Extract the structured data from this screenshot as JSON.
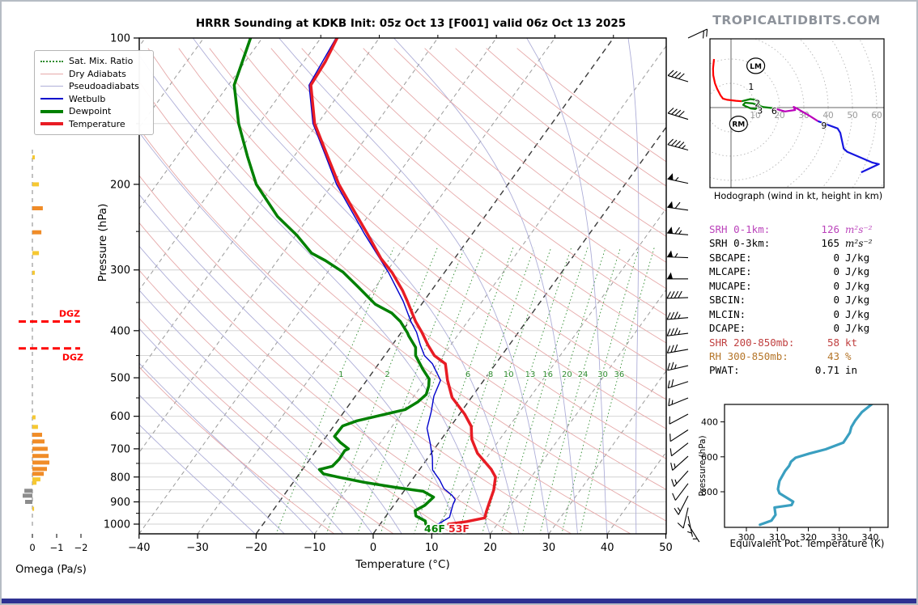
{
  "title": "HRRR Sounding at KDKB Init: 05z Oct 13 [F001] valid 06z Oct 13 2025",
  "brand": "TROPICALTIDBITS.COM",
  "legend": {
    "items": [
      {
        "key": "satmix",
        "label": "Sat. Mix. Ratio"
      },
      {
        "key": "dryadiabat",
        "label": "Dry Adiabats"
      },
      {
        "key": "pseudoadiabat",
        "label": "Pseudoadiabats"
      },
      {
        "key": "wetbulb",
        "label": "Wetbulb"
      },
      {
        "key": "dewpoint",
        "label": "Dewpoint"
      },
      {
        "key": "temperature",
        "label": "Temperature"
      }
    ]
  },
  "axes": {
    "pressure_label": "Pressure (hPa)",
    "temperature_label": "Temperature (°C)",
    "omega_label": "Omega (Pa/s)",
    "pressure_ticks": [
      100,
      200,
      300,
      400,
      500,
      600,
      700,
      800,
      900,
      1000
    ],
    "temperature_ticks": [
      -40,
      -30,
      -20,
      -10,
      0,
      10,
      20,
      30,
      40,
      50
    ],
    "omega_ticks": [
      0,
      -1,
      -2
    ]
  },
  "surface_labels": {
    "dewpoint_f": "46F",
    "temperature_f": "53F"
  },
  "dgz": {
    "label": "DGZ",
    "pressures": [
      383,
      435
    ]
  },
  "hodograph": {
    "caption": "Hodograph (wind in kt, height in km)",
    "ring_interval_kt": 10,
    "ring_labels": [
      10,
      20,
      30,
      40,
      50,
      60
    ],
    "height_labels": [
      {
        "t": "1",
        "u": 8.3,
        "v": 8.7
      },
      {
        "t": "2",
        "u": 10.9,
        "v": 1.8
      },
      {
        "t": "3",
        "u": 11.9,
        "v": -1.2
      },
      {
        "t": "6",
        "u": 17.8,
        "v": -1.3
      },
      {
        "t": "9",
        "u": 38.3,
        "v": -7.3
      }
    ],
    "markers": [
      {
        "t": "LM",
        "u": 10.2,
        "v": 17.2
      },
      {
        "t": "RM",
        "u": 3.1,
        "v": -6.7
      }
    ]
  },
  "indices_rows": [
    {
      "label": "SRH 0-1km:",
      "value": "126",
      "unit": "m²s⁻²",
      "color": "#bb44bb",
      "unit_italic": true
    },
    {
      "label": "SRH 0-3km:",
      "value": "165",
      "unit": "m²s⁻²",
      "color": "#000000",
      "unit_italic": true
    },
    {
      "label": "SBCAPE:",
      "value": "0",
      "unit": "J/kg",
      "color": "#000000"
    },
    {
      "label": "MLCAPE:",
      "value": "0",
      "unit": "J/kg",
      "color": "#000000"
    },
    {
      "label": "MUCAPE:",
      "value": "0",
      "unit": "J/kg",
      "color": "#000000"
    },
    {
      "label": "SBCIN:",
      "value": "0",
      "unit": "J/kg",
      "color": "#000000"
    },
    {
      "label": "MLCIN:",
      "value": "0",
      "unit": "J/kg",
      "color": "#000000"
    },
    {
      "label": "DCAPE:",
      "value": "0",
      "unit": "J/kg",
      "color": "#000000"
    },
    {
      "label": "SHR 200-850mb:",
      "value": "58",
      "unit": "kt",
      "color": "#c04040"
    },
    {
      "label": "RH 300-850mb:",
      "value": "43",
      "unit": "%",
      "color": "#b5762a"
    },
    {
      "label": "PWAT:",
      "value": "0.71",
      "unit": "in",
      "color": "#000000"
    }
  ],
  "thetae": {
    "xlabel": "Equivalent Pot. Temperature (K)",
    "ylabel": "Pressure (hPa)",
    "x_ticks": [
      300,
      310,
      320,
      330,
      340
    ],
    "y_ticks": [
      400,
      600,
      800
    ]
  },
  "mixing_ratio_values": [
    1,
    2,
    3,
    4,
    6,
    8,
    10,
    13,
    16,
    20,
    24,
    30,
    36
  ],
  "mixing_ratio_label_values": [
    1,
    2,
    6,
    8,
    10,
    13,
    16,
    20,
    24,
    30,
    36
  ],
  "chart_data": [
    {
      "type": "line",
      "name": "skewt_sounding",
      "xlabel": "Temperature (°C)",
      "ylabel": "Pressure (hPa)",
      "xlim": [
        -40,
        50
      ],
      "pressure_range": [
        100,
        1050
      ],
      "series": [
        {
          "name": "Temperature",
          "color": "#e81c24",
          "points_p_T": [
            [
              100,
              -67.2
            ],
            [
              112,
              -66.3
            ],
            [
              125,
              -65.9
            ],
            [
              150,
              -60.5
            ],
            [
              175,
              -54.3
            ],
            [
              200,
              -48.9
            ],
            [
              226,
              -43.2
            ],
            [
              253,
              -37.9
            ],
            [
              284,
              -32.6
            ],
            [
              304,
              -28.9
            ],
            [
              331,
              -24.9
            ],
            [
              348,
              -22.8
            ],
            [
              383,
              -18.9
            ],
            [
              403,
              -16.5
            ],
            [
              428,
              -13.9
            ],
            [
              450,
              -11.5
            ],
            [
              468,
              -8.6
            ],
            [
              506,
              -6.2
            ],
            [
              549,
              -3.3
            ],
            [
              594,
              0.9
            ],
            [
              629,
              3.5
            ],
            [
              669,
              5.2
            ],
            [
              715,
              7.9
            ],
            [
              771,
              12.2
            ],
            [
              800,
              13.9
            ],
            [
              851,
              15.2
            ],
            [
              903,
              16.0
            ],
            [
              943,
              16.6
            ],
            [
              971,
              17.1
            ],
            [
              988,
              14.5
            ],
            [
              1000,
              11.7
            ]
          ]
        },
        {
          "name": "Dewpoint",
          "color": "#008000",
          "points_p_T": [
            [
              100,
              -82
            ],
            [
              125,
              -79
            ],
            [
              150,
              -73.5
            ],
            [
              175,
              -68
            ],
            [
              200,
              -63
            ],
            [
              233,
              -55.4
            ],
            [
              255,
              -49.7
            ],
            [
              277,
              -45.1
            ],
            [
              287,
              -41.8
            ],
            [
              303,
              -37.4
            ],
            [
              325,
              -33
            ],
            [
              353,
              -27.9
            ],
            [
              368,
              -24
            ],
            [
              383,
              -21.5
            ],
            [
              404,
              -18.9
            ],
            [
              410,
              -18.3
            ],
            [
              433,
              -15.7
            ],
            [
              450,
              -14.7
            ],
            [
              480,
              -11.8
            ],
            [
              503,
              -9.5
            ],
            [
              520,
              -8.7
            ],
            [
              541,
              -8.1
            ],
            [
              560,
              -8.6
            ],
            [
              581,
              -9.8
            ],
            [
              613,
              -16.7
            ],
            [
              628,
              -18.5
            ],
            [
              660,
              -18.6
            ],
            [
              680,
              -16.8
            ],
            [
              700,
              -14.7
            ],
            [
              706,
              -15.1
            ],
            [
              735,
              -15.0
            ],
            [
              760,
              -15.3
            ],
            [
              772,
              -17.1
            ],
            [
              788,
              -15.9
            ],
            [
              800,
              -13
            ],
            [
              820,
              -8
            ],
            [
              840,
              -2
            ],
            [
              856,
              3.3
            ],
            [
              880,
              5.8
            ],
            [
              915,
              5.3
            ],
            [
              938,
              4.3
            ],
            [
              962,
              5.1
            ],
            [
              985,
              7.3
            ],
            [
              1000,
              7.8
            ]
          ]
        },
        {
          "name": "Wetbulb",
          "color": "#0000cc",
          "points_p_T": [
            [
              100,
              -67.4
            ],
            [
              125,
              -66.2
            ],
            [
              150,
              -60.8
            ],
            [
              175,
              -54.6
            ],
            [
              200,
              -49.3
            ],
            [
              253,
              -38.4
            ],
            [
              304,
              -29.5
            ],
            [
              348,
              -23.5
            ],
            [
              383,
              -19.7
            ],
            [
              403,
              -17.4
            ],
            [
              428,
              -15.2
            ],
            [
              450,
              -13.2
            ],
            [
              468,
              -10.8
            ],
            [
              506,
              -7.4
            ],
            [
              545,
              -6.6
            ],
            [
              588,
              -5.1
            ],
            [
              635,
              -3.8
            ],
            [
              684,
              -1.3
            ],
            [
              729,
              0.7
            ],
            [
              774,
              2.3
            ],
            [
              811,
              4.7
            ],
            [
              845,
              6.5
            ],
            [
              872,
              8.7
            ],
            [
              890,
              9.8
            ],
            [
              910,
              10.0
            ],
            [
              933,
              10.4
            ],
            [
              950,
              10.7
            ],
            [
              968,
              11.0
            ],
            [
              985,
              10.4
            ],
            [
              1000,
              9.9
            ]
          ]
        }
      ],
      "wind_barbs_p_kt_dir": [
        [
          100,
          20,
          65
        ],
        [
          123,
          40,
          287
        ],
        [
          147,
          40,
          287
        ],
        [
          170,
          45,
          285
        ],
        [
          199,
          55,
          282
        ],
        [
          226,
          60,
          278
        ],
        [
          254,
          65,
          275
        ],
        [
          283,
          55,
          272
        ],
        [
          313,
          50,
          270
        ],
        [
          342,
          40,
          268
        ],
        [
          376,
          35,
          265
        ],
        [
          405,
          35,
          263
        ],
        [
          437,
          30,
          260
        ],
        [
          472,
          25,
          257
        ],
        [
          509,
          20,
          252
        ],
        [
          550,
          15,
          248
        ],
        [
          594,
          10,
          242
        ],
        [
          640,
          10,
          237
        ],
        [
          681,
          10,
          232
        ],
        [
          725,
          15,
          228
        ],
        [
          777,
          15,
          222
        ],
        [
          825,
          10,
          217
        ],
        [
          875,
          15,
          207
        ],
        [
          925,
          10,
          193
        ],
        [
          963,
          5,
          168
        ],
        [
          1000,
          5,
          148
        ]
      ]
    },
    {
      "type": "line",
      "name": "hodograph",
      "units": "kt",
      "series": [
        {
          "name": "0-1km",
          "color": "#ff0000",
          "points_uv": [
            [
              -7,
              20
            ],
            [
              -7.4,
              16
            ],
            [
              -7.3,
              13.3
            ],
            [
              -6.6,
              10
            ],
            [
              -5.7,
              7.7
            ],
            [
              -4.3,
              5
            ],
            [
              -3.3,
              3.7
            ],
            [
              -1.5,
              3.2
            ],
            [
              2,
              2.8
            ],
            [
              4.4,
              2.6
            ]
          ]
        },
        {
          "name": "1-3km",
          "color": "#008000",
          "points_uv": [
            [
              4.4,
              2.6
            ],
            [
              8,
              3.5
            ],
            [
              10.6,
              3.1
            ],
            [
              11.9,
              0.7
            ],
            [
              10,
              -0.6
            ],
            [
              8.3,
              -0.4
            ],
            [
              5.9,
              0.6
            ],
            [
              5,
              1.1
            ],
            [
              5.8,
              2
            ],
            [
              9,
              1.7
            ],
            [
              13.3,
              0.2
            ],
            [
              17.2,
              -0.2
            ]
          ]
        },
        {
          "name": "3-6km",
          "color": "#bb00bb",
          "points_uv": [
            [
              17.2,
              -0.2
            ],
            [
              22.2,
              -1.6
            ],
            [
              26.4,
              -1
            ],
            [
              25.8,
              0.3
            ],
            [
              27.2,
              -0.4
            ],
            [
              32.2,
              -3.3
            ],
            [
              35.8,
              -5.6
            ]
          ]
        },
        {
          "name": "6-12km",
          "color": "#1515e0",
          "points_uv": [
            [
              35.8,
              -5.6
            ],
            [
              43.9,
              -8.6
            ],
            [
              45,
              -10.4
            ],
            [
              46.4,
              -16.9
            ],
            [
              47.8,
              -18.2
            ],
            [
              58.3,
              -22.7
            ],
            [
              60.9,
              -23.3
            ],
            [
              53.6,
              -26.7
            ]
          ]
        }
      ]
    },
    {
      "type": "line",
      "name": "theta_e_profile",
      "xlabel": "Equivalent Pot. Temperature (K)",
      "ylabel": "Pressure (hPa)",
      "color": "#3a9fc0",
      "points_K_p": [
        [
          304.4,
          989
        ],
        [
          308.1,
          965
        ],
        [
          309.4,
          932
        ],
        [
          309.1,
          890
        ],
        [
          314.6,
          876
        ],
        [
          315.1,
          857
        ],
        [
          310.7,
          809
        ],
        [
          310.2,
          785
        ],
        [
          310.7,
          738
        ],
        [
          312.5,
          681
        ],
        [
          313.8,
          652
        ],
        [
          314.4,
          628
        ],
        [
          315.9,
          605
        ],
        [
          320.4,
          581
        ],
        [
          325.6,
          557
        ],
        [
          331.3,
          519
        ],
        [
          332.4,
          490
        ],
        [
          333.4,
          462
        ],
        [
          333.9,
          429
        ],
        [
          335.2,
          391
        ],
        [
          337.3,
          344
        ],
        [
          340.7,
          296
        ]
      ]
    },
    {
      "type": "bar",
      "name": "omega_profile",
      "xlabel": "Omega (Pa/s)",
      "points_p_PaPerS": [
        [
          176,
          -0.1
        ],
        [
          200,
          -0.27
        ],
        [
          224,
          -0.43
        ],
        [
          251,
          -0.37
        ],
        [
          277,
          -0.27
        ],
        [
          304,
          -0.1
        ],
        [
          603,
          -0.13
        ],
        [
          631,
          -0.23
        ],
        [
          655,
          -0.4
        ],
        [
          676,
          -0.5
        ],
        [
          700,
          -0.63
        ],
        [
          724,
          -0.67
        ],
        [
          747,
          -0.7
        ],
        [
          770,
          -0.6
        ],
        [
          788,
          -0.47
        ],
        [
          809,
          -0.33
        ],
        [
          822,
          -0.17
        ],
        [
          854,
          0.33
        ],
        [
          874,
          0.4
        ],
        [
          900,
          0.3
        ],
        [
          930,
          -0.07
        ]
      ]
    }
  ],
  "colors": {
    "temperature": "#e81c24",
    "dewpoint": "#008000",
    "wetbulb": "#0000cc",
    "dry_adiabat": "#e6a9a9",
    "pseudoadiabat": "#aeaed8",
    "mixing_ratio": "#2e8b2e",
    "isotherm": "#9a9a9a",
    "isotherm_bold": "#3a3a3a",
    "gridline": "#d0d0d0",
    "omega_weak": "#f6c832",
    "omega_strong": "#f08c28",
    "omega_positive": "#8c8c8c",
    "dgz": "#ff0000",
    "theta_e": "#3a9fc0",
    "footer": "#2e3192",
    "brand": "#8e939b"
  }
}
